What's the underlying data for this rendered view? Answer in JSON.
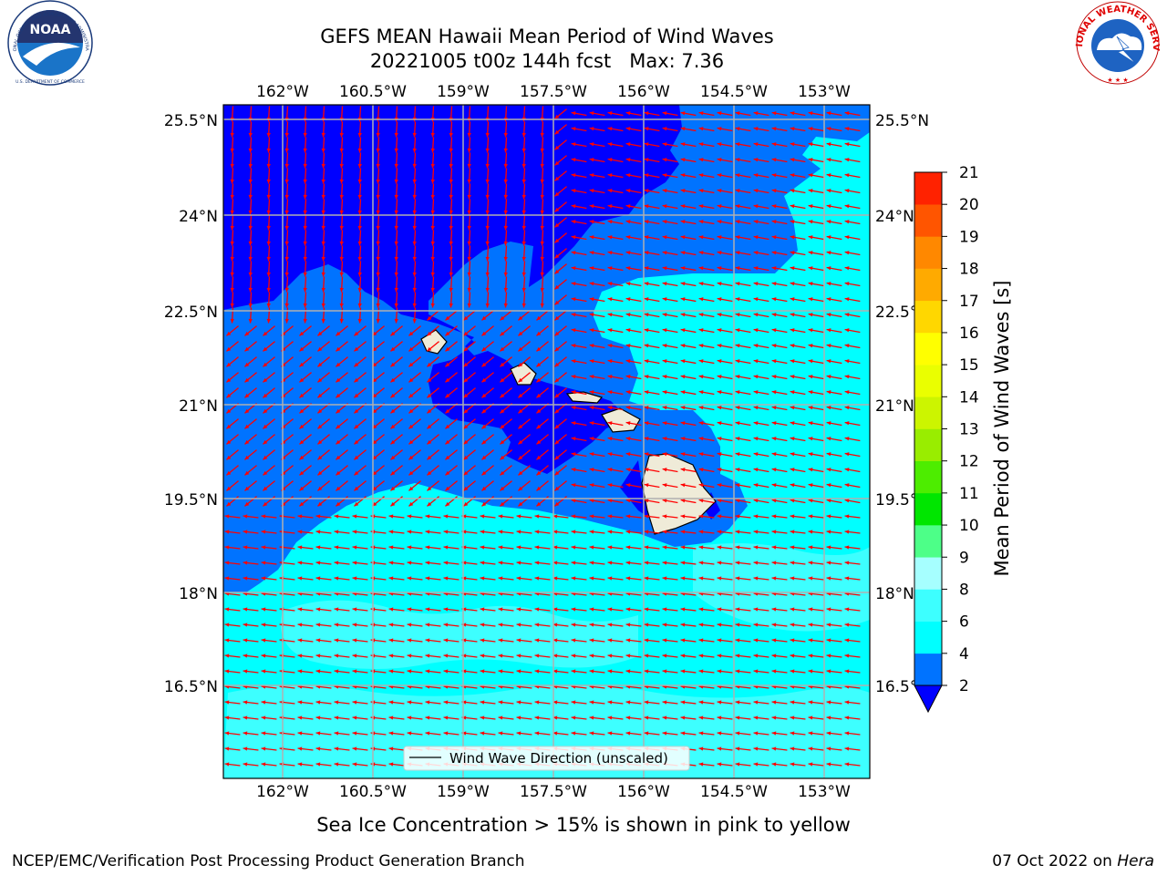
{
  "title": {
    "line1": "GEFS MEAN Hawaii Mean Period of Wind Waves",
    "line2": "20221005 t00z 144h fcst   Max: 7.36"
  },
  "footer": {
    "note": "Sea Ice Concentration > 15% is shown in pink to yellow",
    "left": "NCEP/EMC/Verification Post Processing Product Generation Branch",
    "date": "07 Oct 2022 on ",
    "host": "Hera"
  },
  "logos": {
    "noaa_text": "NOAA",
    "noaa_ring": "NATIONAL OCEANIC AND ATMOSPHERIC ADMINISTRATION",
    "noaa_ring_bottom": "U.S. DEPARTMENT OF COMMERCE",
    "nws_ring": "NATIONAL WEATHER SERVICE"
  },
  "map": {
    "lon_ticks": [
      "162°W",
      "160.5°W",
      "159°W",
      "157.5°W",
      "156°W",
      "154.5°W",
      "153°W"
    ],
    "lat_ticks": [
      "25.5°N",
      "24°N",
      "22.5°N",
      "21°N",
      "19.5°N",
      "18°N",
      "16.5°N"
    ],
    "legend": "Wind Wave Direction (unscaled)",
    "arrow_color": "#ff0000"
  },
  "colorbar": {
    "label": "Mean Period of Wind Waves [s]",
    "ticks": [
      "2",
      "4",
      "6",
      "8",
      "9",
      "10",
      "11",
      "12",
      "13",
      "14",
      "15",
      "16",
      "17",
      "18",
      "19",
      "20",
      "21"
    ],
    "colors": [
      "#0073ff",
      "#00ffff",
      "#3dffff",
      "#a6ffff",
      "#4dff88",
      "#00e600",
      "#4ded00",
      "#99ed00",
      "#ccf500",
      "#eaff00",
      "#ffff00",
      "#ffd700",
      "#ffaa00",
      "#ff8800",
      "#ff5500",
      "#ff2200"
    ],
    "under_color": "#0000ff"
  },
  "colors": {
    "period_lt2": "#0000ff",
    "period_2_4": "#0073ff",
    "period_4_6": "#00ffff",
    "period_6_8": "#3dffff",
    "land": "#efebd8",
    "grid": "#b0b0b0"
  }
}
